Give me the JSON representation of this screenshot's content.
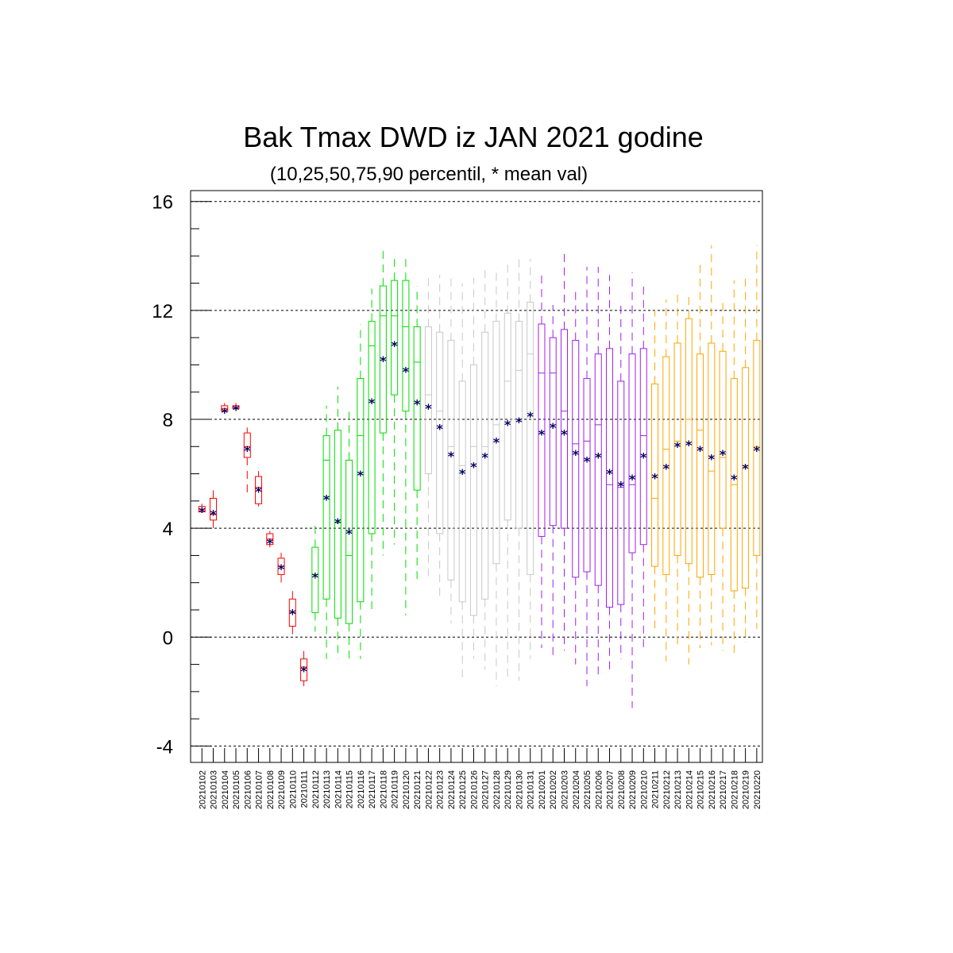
{
  "chart_data": {
    "type": "boxplot",
    "title": "Bak Tmax DWD iz JAN 2021 godine",
    "subtitle": "(10,25,50,75,90 percentil, * mean val)",
    "ylim": [
      -4.6,
      16.4
    ],
    "yticks": [
      -4,
      0,
      4,
      8,
      12,
      16
    ],
    "ytick_labels": [
      "-4",
      "0",
      "4",
      "8",
      "12",
      "16"
    ],
    "grid": "dashed horizontal at major ticks",
    "mean_marker": "*",
    "mean_color": "#000066",
    "categories": [
      "20210102",
      "20210103",
      "20210104",
      "20210105",
      "20210106",
      "20210107",
      "20210108",
      "20210109",
      "20210110",
      "20210111",
      "20210112",
      "20210113",
      "20210114",
      "20210115",
      "20210116",
      "20210117",
      "20210118",
      "20210119",
      "20210120",
      "20210121",
      "20210122",
      "20210123",
      "20210124",
      "20210125",
      "20210126",
      "20210127",
      "20210128",
      "20210129",
      "20210130",
      "20210131",
      "20210201",
      "20210202",
      "20210203",
      "20210204",
      "20210205",
      "20210206",
      "20210207",
      "20210208",
      "20210209",
      "20210210",
      "20210211",
      "20210212",
      "20210213",
      "20210214",
      "20210215",
      "20210216",
      "20210217",
      "20210218",
      "20210219",
      "20210220"
    ],
    "p10": [
      4.6,
      3.8,
      8.2,
      8.3,
      5.2,
      4.8,
      3.3,
      2.0,
      0.0,
      -1.8,
      0.2,
      -0.8,
      -0.8,
      -0.8,
      -0.8,
      1.0,
      3.0,
      3.4,
      0.8,
      2.0,
      2.2,
      1.5,
      0.5,
      -1.6,
      -0.8,
      -1.2,
      -1.8,
      -1.5,
      -1.6,
      -0.8,
      -0.4,
      -0.8,
      -0.5,
      -1.0,
      -1.8,
      -1.5,
      -1.2,
      -0.8,
      -2.6,
      -0.4,
      0.3,
      -0.9,
      -0.3,
      -1.0,
      -0.4,
      -0.3,
      -0.5,
      -0.7,
      -0.2,
      0.3
    ],
    "p25": [
      4.6,
      4.3,
      8.3,
      8.4,
      6.6,
      4.9,
      3.4,
      2.3,
      0.4,
      -1.6,
      0.9,
      1.4,
      0.7,
      0.5,
      1.3,
      3.8,
      7.5,
      8.9,
      8.3,
      5.4,
      6.0,
      3.8,
      2.1,
      1.3,
      0.8,
      1.4,
      2.7,
      4.3,
      4.0,
      2.3,
      3.7,
      4.1,
      4.0,
      2.2,
      2.4,
      1.9,
      1.1,
      1.2,
      3.1,
      3.4,
      2.6,
      2.3,
      3.0,
      2.7,
      2.2,
      2.3,
      4.0,
      1.7,
      1.8,
      3.0
    ],
    "p50": [
      4.7,
      4.5,
      8.4,
      8.4,
      7.0,
      5.5,
      3.6,
      2.6,
      0.9,
      -1.1,
      2.3,
      6.5,
      4.2,
      3.0,
      7.4,
      10.7,
      11.8,
      11.8,
      11.4,
      10.1,
      8.9,
      8.3,
      7.0,
      6.3,
      7.0,
      7.0,
      7.8,
      9.4,
      9.8,
      10.4,
      9.7,
      9.7,
      8.3,
      7.1,
      7.2,
      7.8,
      5.6,
      5.5,
      5.6,
      7.4,
      5.1,
      6.9,
      7.2,
      8.0,
      7.6,
      6.1,
      6.6,
      5.6,
      6.3,
      7.0
    ],
    "p75": [
      4.8,
      5.1,
      8.5,
      8.5,
      7.5,
      5.9,
      3.8,
      2.9,
      1.4,
      -0.8,
      3.3,
      7.4,
      7.6,
      6.5,
      9.5,
      11.6,
      12.9,
      13.1,
      13.1,
      11.4,
      11.4,
      11.2,
      10.9,
      9.4,
      10.0,
      11.2,
      11.6,
      11.9,
      11.6,
      12.3,
      11.5,
      11.0,
      11.3,
      10.9,
      9.5,
      10.4,
      10.6,
      9.4,
      10.4,
      10.6,
      9.3,
      10.3,
      10.8,
      11.7,
      10.4,
      10.8,
      10.5,
      9.5,
      9.9,
      10.9
    ],
    "p90": [
      4.9,
      5.4,
      8.6,
      8.6,
      7.7,
      6.1,
      3.9,
      3.1,
      1.8,
      -0.4,
      4.3,
      8.5,
      9.2,
      8.4,
      11.5,
      12.8,
      14.2,
      14.1,
      13.9,
      12.9,
      13.2,
      13.3,
      13.3,
      13.0,
      13.2,
      13.6,
      13.6,
      13.7,
      13.9,
      13.9,
      13.3,
      12.2,
      14.1,
      12.8,
      13.6,
      13.6,
      13.3,
      12.3,
      13.4,
      13.0,
      12.0,
      12.4,
      12.6,
      12.6,
      13.8,
      14.4,
      12.3,
      13.1,
      13.2,
      14.4
    ],
    "mean": [
      4.7,
      4.6,
      8.35,
      8.45,
      6.95,
      5.45,
      3.55,
      2.6,
      0.95,
      -1.15,
      2.3,
      5.15,
      4.3,
      3.9,
      6.05,
      8.7,
      10.25,
      10.8,
      9.85,
      8.65,
      8.5,
      7.75,
      6.75,
      6.1,
      6.35,
      6.7,
      7.25,
      7.9,
      8.0,
      8.2,
      7.55,
      7.8,
      7.55,
      6.8,
      6.55,
      6.7,
      6.1,
      5.65,
      5.9,
      6.7,
      5.95,
      6.3,
      7.1,
      7.15,
      6.95,
      6.65,
      6.8,
      5.9,
      6.3,
      6.95
    ],
    "series": [
      {
        "color": "#ff0000",
        "from": 0,
        "to": 9
      },
      {
        "color": "#00dd00",
        "from": 10,
        "to": 19
      },
      {
        "color": "#c8c8c8",
        "from": 20,
        "to": 29
      },
      {
        "color": "#a020f0",
        "from": 30,
        "to": 39
      },
      {
        "color": "#ffa500",
        "from": 40,
        "to": 49
      }
    ]
  }
}
